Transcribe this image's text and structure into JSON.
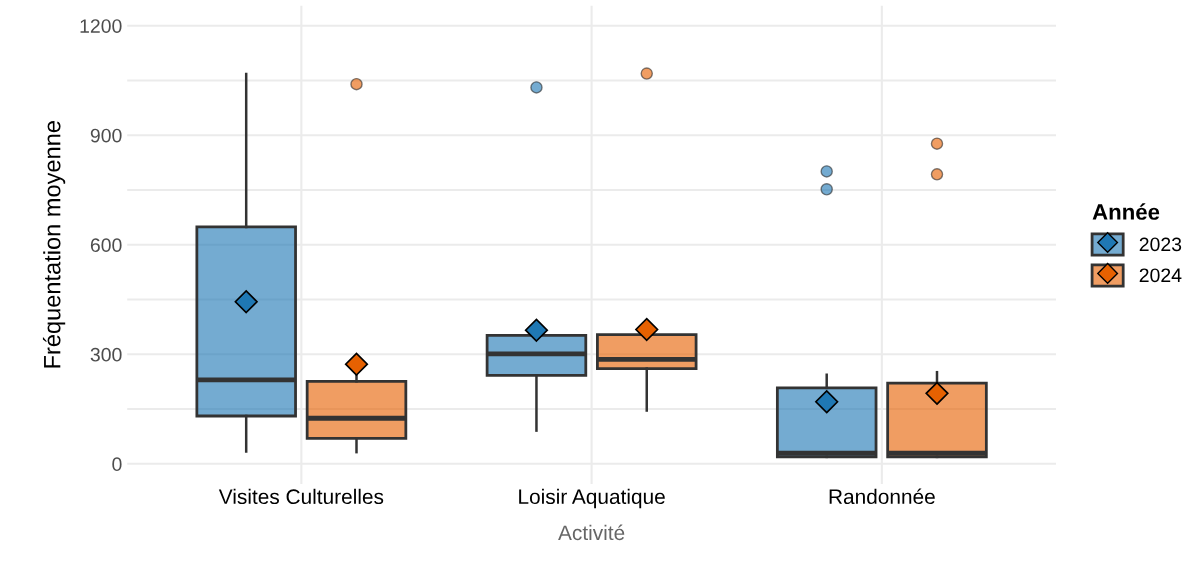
{
  "chart_data": {
    "type": "box",
    "xlabel": "Activité",
    "ylabel": "Fréquentation moyenne",
    "legend_title": "Année",
    "categories": [
      "Visites Culturelles",
      "Loisir Aquatique",
      "Randonnée"
    ],
    "series": [
      {
        "name": "2023",
        "color": "#1f78b4",
        "boxes": [
          {
            "low": 34,
            "q1": 131,
            "median": 230,
            "q3": 649,
            "high": 1068,
            "mean": 444
          },
          {
            "low": 91,
            "q1": 242,
            "median": 301,
            "q3": 352,
            "high": 352,
            "mean": 366,
            "outliers": [
              1031
            ]
          },
          {
            "low": 19,
            "q1": 19,
            "median": 29,
            "q3": 208,
            "high": 244,
            "mean": 170,
            "outliers": [
              801,
              752
            ]
          }
        ]
      },
      {
        "name": "2024",
        "color": "#e66101",
        "boxes": [
          {
            "low": 32,
            "q1": 70,
            "median": 125,
            "q3": 226,
            "high": 242,
            "mean": 273,
            "outliers": [
              1040
            ]
          },
          {
            "low": 146,
            "q1": 261,
            "median": 286,
            "q3": 354,
            "high": 354,
            "mean": 368,
            "outliers": [
              1069
            ]
          },
          {
            "low": 19,
            "q1": 19,
            "median": 29,
            "q3": 221,
            "high": 251,
            "mean": 193,
            "outliers": [
              877,
              793
            ]
          }
        ]
      }
    ],
    "ylim": [
      -55,
      1255
    ],
    "yticks": [
      0,
      {
        "value": 150,
        "label": null
      },
      300,
      {
        "value": 450,
        "label": null
      },
      600,
      {
        "value": 750,
        "label": null
      },
      900,
      {
        "value": 1050,
        "label": null
      },
      1200
    ],
    "grid": true,
    "legend": "right",
    "marker": "diamond"
  }
}
